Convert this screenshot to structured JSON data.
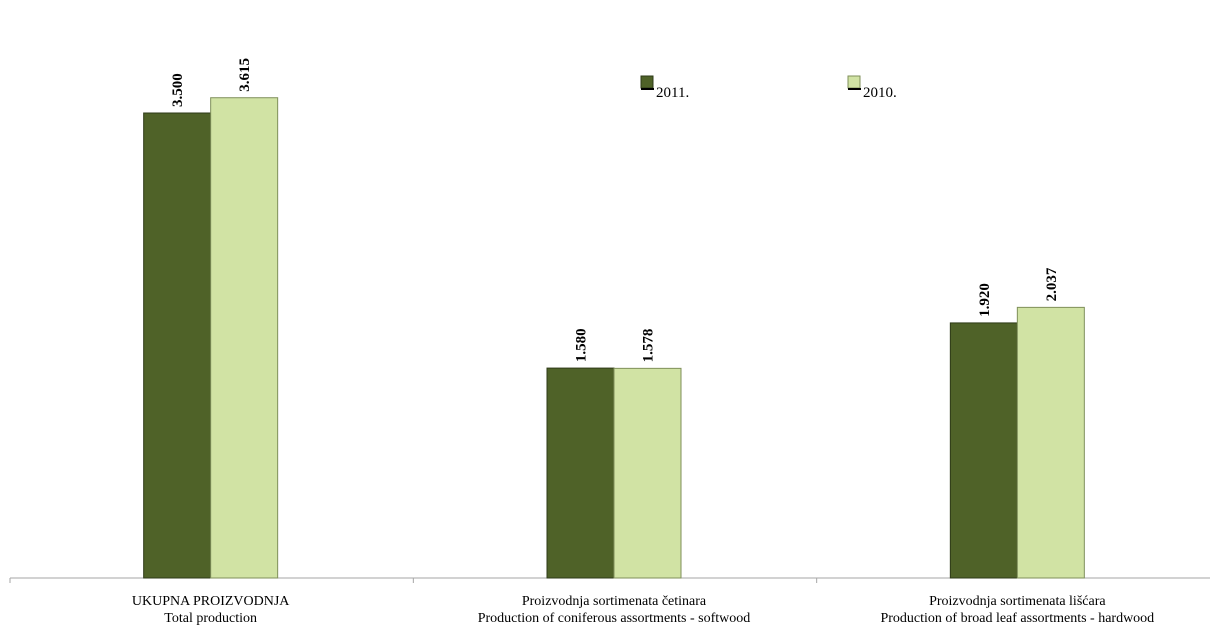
{
  "chart_data": {
    "type": "bar",
    "categories": [
      [
        "UKUPNA PROIZVODNJA",
        "Total production"
      ],
      [
        "Proizvodnja sortimenata četinara",
        "Production of coniferous assortments - softwood"
      ],
      [
        "Proizvodnja sortimenata lišćara",
        "Production of broad leaf assortments - hardwood"
      ]
    ],
    "series": [
      {
        "name": "2011.",
        "values": [
          3500,
          1580,
          1920
        ],
        "labels": [
          "3.500",
          "1.580",
          "1.920"
        ],
        "color": "#4f6228"
      },
      {
        "name": "2010.",
        "values": [
          3615,
          1578,
          2037
        ],
        "labels": [
          "3.615",
          "1.578",
          "2.037"
        ],
        "color": "#d1e3a4"
      }
    ],
    "ylim": [
      0,
      4200
    ],
    "grid": false,
    "legend_position": "top-right"
  }
}
